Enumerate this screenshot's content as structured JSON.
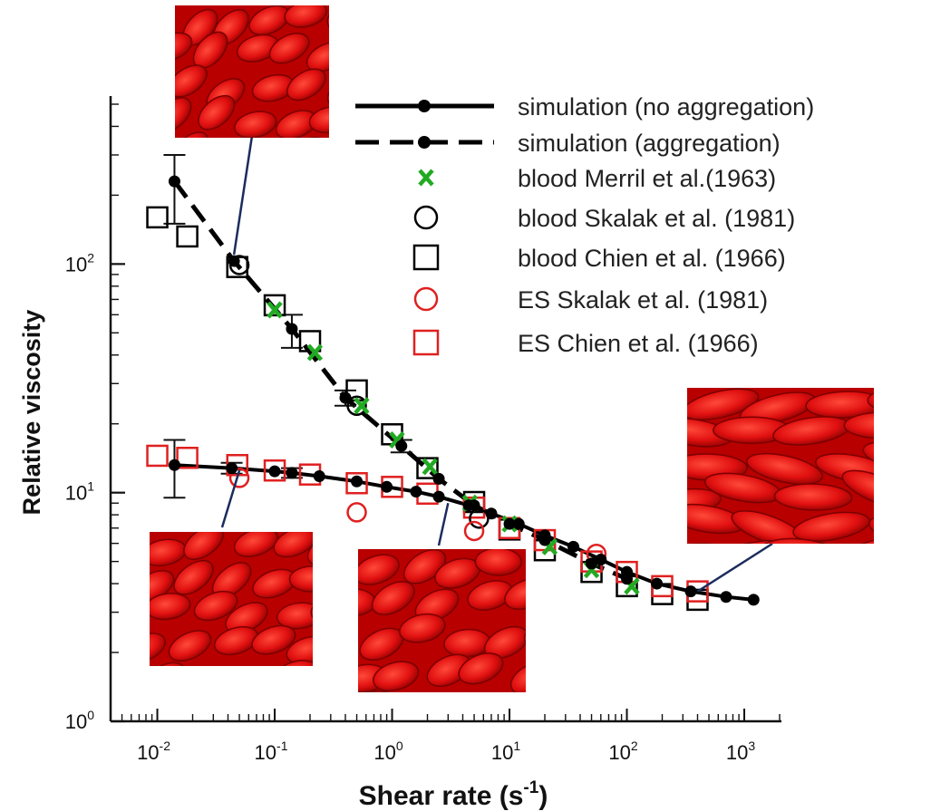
{
  "chart_data": {
    "type": "scatter",
    "xscale": "log",
    "yscale": "log",
    "xlim": [
      0.004,
      2000
    ],
    "ylim": [
      1,
      500
    ],
    "xlabel": "Shear rate (s",
    "xlabel_sup": "-1",
    "xlabel_end": ")",
    "ylabel": "Relative viscosity",
    "x_ticks": [
      {
        "value": 0.01,
        "base": "10",
        "exp": "-2"
      },
      {
        "value": 0.1,
        "base": "10",
        "exp": "-1"
      },
      {
        "value": 1,
        "base": "10",
        "exp": "0"
      },
      {
        "value": 10,
        "base": "10",
        "exp": "1"
      },
      {
        "value": 100,
        "base": "10",
        "exp": "2"
      },
      {
        "value": 1000,
        "base": "10",
        "exp": "3"
      }
    ],
    "y_ticks": [
      {
        "value": 1,
        "base": "10",
        "exp": "0"
      },
      {
        "value": 10,
        "base": "10",
        "exp": "1"
      },
      {
        "value": 100,
        "base": "10",
        "exp": "2"
      }
    ],
    "legend_position": "top-right",
    "series": [
      {
        "name": "simulation (no aggregation)",
        "style": "solid-line-dot",
        "color": "#000000",
        "x": [
          0.014,
          0.043,
          0.1,
          0.14,
          0.24,
          0.5,
          0.9,
          1.6,
          2.5,
          4.5,
          7,
          12,
          20,
          35,
          60,
          100,
          180,
          350,
          700,
          1200
        ],
        "y": [
          13.2,
          12.8,
          12.4,
          12.2,
          11.8,
          11.2,
          10.6,
          10.1,
          9.6,
          8.8,
          8.1,
          7.3,
          6.5,
          5.8,
          5.1,
          4.5,
          4.0,
          3.7,
          3.5,
          3.4
        ]
      },
      {
        "name": "simulation (aggregation)",
        "style": "dashed-line-dot",
        "color": "#000000",
        "x": [
          0.014,
          0.045,
          0.14,
          0.4,
          1.2,
          2.5,
          5,
          10,
          20,
          50,
          100
        ],
        "y": [
          230,
          103,
          52,
          26,
          16,
          11.5,
          8.8,
          7.3,
          6.2,
          4.9,
          4.2
        ]
      },
      {
        "name": "blood Merril et al.(1963)",
        "marker": "x",
        "color": "#22aa22",
        "x": [
          0.1,
          0.22,
          0.55,
          1.1,
          2.1,
          4.6,
          10,
          22,
          50,
          110
        ],
        "y": [
          63,
          41,
          24,
          17,
          13,
          9,
          7.3,
          5.8,
          4.6,
          3.9
        ]
      },
      {
        "name": "blood Skalak et al. (1981)",
        "marker": "circle",
        "color": "#000000",
        "x": [
          0.05,
          0.5,
          5.5
        ],
        "y": [
          99,
          24,
          7.7
        ]
      },
      {
        "name": "blood Chien et al. (1966)",
        "marker": "square",
        "color": "#000000",
        "x": [
          0.01,
          0.018,
          0.048,
          0.1,
          0.2,
          0.5,
          1,
          2,
          5,
          10,
          20,
          50,
          100,
          200,
          400
        ],
        "y": [
          160,
          132,
          97,
          66,
          46,
          28,
          18,
          12.8,
          9.1,
          6.9,
          5.6,
          4.5,
          3.9,
          3.6,
          3.4
        ]
      },
      {
        "name": "ES Skalak et al. (1981)",
        "marker": "circle",
        "color": "#e02020",
        "x": [
          0.05,
          0.5,
          5,
          55
        ],
        "y": [
          11.6,
          8.2,
          6.8,
          5.4
        ]
      },
      {
        "name": "ES Chien et al. (1966)",
        "marker": "square",
        "color": "#e02020",
        "x": [
          0.01,
          0.018,
          0.048,
          0.1,
          0.2,
          0.5,
          1,
          2,
          5,
          10,
          20,
          50,
          100,
          200,
          400
        ],
        "y": [
          14.5,
          14.2,
          13.2,
          12.5,
          12.0,
          11.0,
          10.6,
          9.9,
          8.6,
          7.0,
          6.2,
          5.0,
          4.5,
          3.9,
          3.7
        ]
      }
    ],
    "error_bars": [
      {
        "x": 0.014,
        "y": 230,
        "low": 150,
        "high": 300
      },
      {
        "x": 0.014,
        "y": 13.2,
        "low": 9.5,
        "high": 17
      },
      {
        "x": 0.043,
        "y": 12.8,
        "low": 12.1,
        "high": 13.5
      },
      {
        "x": 0.14,
        "y": 52,
        "low": 43,
        "high": 60
      },
      {
        "x": 0.14,
        "y": 12.2,
        "low": 11.6,
        "high": 12.8
      },
      {
        "x": 0.4,
        "y": 26,
        "low": 24,
        "high": 28
      },
      {
        "x": 1.2,
        "y": 16,
        "low": 15,
        "high": 17
      }
    ]
  },
  "insets": [
    {
      "name": "inset-top",
      "anchor_x": 0.045,
      "anchor_y": 110
    },
    {
      "name": "inset-bottom-left",
      "anchor_x": 0.05,
      "anchor_y": 12.5
    },
    {
      "name": "inset-bottom-middle",
      "anchor_x": 3,
      "anchor_y": 9
    },
    {
      "name": "inset-right",
      "anchor_x": 400,
      "anchor_y": 3.7
    }
  ],
  "colors": {
    "rbc": "#e01010",
    "rbc_dark": "#9e0000",
    "connector": "#1c2c5e"
  }
}
